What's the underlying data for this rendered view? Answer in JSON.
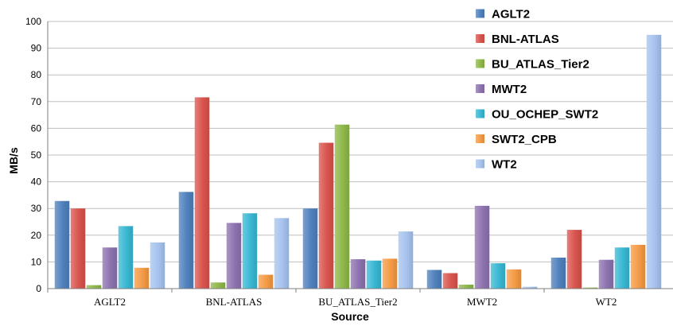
{
  "chart_data": {
    "type": "bar",
    "title": "",
    "xlabel": "Source",
    "ylabel": "MB/s",
    "ylim": [
      0,
      100
    ],
    "yticks": [
      "0",
      "10",
      "20",
      "30",
      "40",
      "50",
      "60",
      "70",
      "80",
      "90",
      "100"
    ],
    "grid": true,
    "legend_position": "top-right",
    "categories": [
      "AGLT2",
      "BNL-ATLAS",
      "BU_ATLAS_Tier2",
      "MWT2",
      "WT2"
    ],
    "series": [
      {
        "name": "AGLT2",
        "color": "#4f81bd",
        "values": [
          32.8,
          36.2,
          30.0,
          7.0,
          11.6
        ]
      },
      {
        "name": "BNL-ATLAS",
        "color": "#d9544d",
        "values": [
          30.0,
          71.6,
          54.6,
          5.8,
          22.0
        ]
      },
      {
        "name": "BU_ATLAS_Tier2",
        "color": "#8fb84a",
        "values": [
          1.3,
          2.3,
          61.4,
          1.5,
          0.4
        ]
      },
      {
        "name": "MWT2",
        "color": "#8e73b0",
        "values": [
          15.4,
          24.6,
          11.0,
          31.0,
          10.8
        ]
      },
      {
        "name": "OU_OCHEP_SWT2",
        "color": "#39b8d3",
        "values": [
          23.4,
          28.2,
          10.5,
          9.5,
          15.4
        ]
      },
      {
        "name": "SWT2_CPB",
        "color": "#f59b45",
        "values": [
          7.8,
          5.2,
          11.2,
          7.2,
          16.4
        ]
      },
      {
        "name": "WT2",
        "color": "#a7c3ee",
        "values": [
          17.3,
          26.4,
          21.4,
          0.7,
          95.0
        ]
      }
    ]
  }
}
